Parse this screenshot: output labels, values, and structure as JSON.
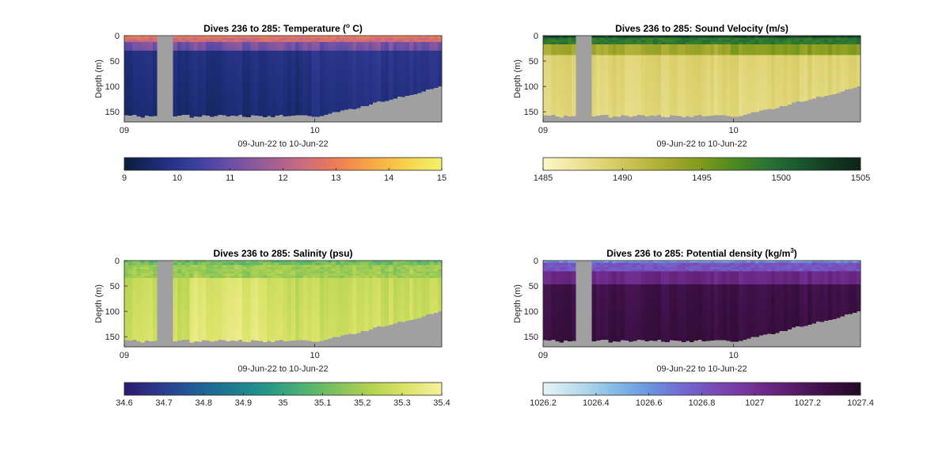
{
  "chart_data": [
    {
      "type": "heatmap",
      "title_prefix": "Dives 236 to 285: Temperature (",
      "title_sup": "o",
      "title_suffix": " C)",
      "variable": "Temperature",
      "ylabel": "Depth (m)",
      "xlabel": "09-Jun-22 to 10-Jun-22",
      "x_ticks": [
        "09",
        "10"
      ],
      "y_ticks": [
        0,
        50,
        100,
        150
      ],
      "ylim": [
        0,
        170
      ],
      "y_reversed": true,
      "profile": "temperature",
      "colormap": [
        "#0b1d3e",
        "#1e2d78",
        "#3a3fa0",
        "#6a4fa6",
        "#9a5c98",
        "#c96a7f",
        "#ee7c55",
        "#f7a743",
        "#f9d24c",
        "#f2f36b"
      ],
      "colorbar": {
        "min": 9,
        "max": 15,
        "ticks": [
          "9",
          "10",
          "11",
          "12",
          "13",
          "14",
          "15"
        ]
      }
    },
    {
      "type": "heatmap",
      "title_prefix": "Dives 236 to 285: Sound Velocity (m/s)",
      "title_sup": "",
      "title_suffix": "",
      "variable": "Sound Velocity",
      "ylabel": "Depth (m)",
      "xlabel": "09-Jun-22 to 10-Jun-22",
      "x_ticks": [
        "09",
        "10"
      ],
      "y_ticks": [
        0,
        50,
        100,
        150
      ],
      "ylim": [
        0,
        170
      ],
      "y_reversed": true,
      "profile": "sound",
      "colormap": [
        "#fbf8c6",
        "#efe59a",
        "#dcd16e",
        "#c4bd4b",
        "#a3a82d",
        "#7f9a1c",
        "#4e8a20",
        "#2a7434",
        "#1a5a30",
        "#123a22",
        "#0d2318"
      ],
      "colorbar": {
        "min": 1485,
        "max": 1505,
        "ticks": [
          "1485",
          "1490",
          "1495",
          "1500",
          "1505"
        ]
      }
    },
    {
      "type": "heatmap",
      "title_prefix": "Dives 236 to 285: Salinity (psu)",
      "title_sup": "",
      "title_suffix": "",
      "variable": "Salinity",
      "ylabel": "Depth (m)",
      "xlabel": "09-Jun-22 to 10-Jun-22",
      "x_ticks": [
        "09",
        "10"
      ],
      "y_ticks": [
        0,
        50,
        100,
        150
      ],
      "ylim": [
        0,
        170
      ],
      "y_reversed": true,
      "profile": "salinity",
      "colormap": [
        "#2a1a6e",
        "#2b3a8e",
        "#1f5d96",
        "#1c7a8f",
        "#25968a",
        "#4ab074",
        "#7ec25c",
        "#b3d250",
        "#dce46a",
        "#f7efa0"
      ],
      "colorbar": {
        "min": 34.6,
        "max": 35.4,
        "ticks": [
          "34.6",
          "34.7",
          "34.8",
          "34.9",
          "35",
          "35.1",
          "35.2",
          "35.3",
          "35.4"
        ]
      }
    },
    {
      "type": "heatmap",
      "title_prefix": "Dives 236 to 285: Potential density (kg/m",
      "title_sup": "3",
      "title_suffix": ")",
      "variable": "Potential density",
      "ylabel": "Depth (m)",
      "xlabel": "09-Jun-22 to 10-Jun-22",
      "x_ticks": [
        "09",
        "10"
      ],
      "y_ticks": [
        0,
        50,
        100,
        150
      ],
      "ylim": [
        0,
        170
      ],
      "y_reversed": true,
      "profile": "density",
      "colormap": [
        "#e7f4f4",
        "#b9dcec",
        "#86bde6",
        "#6a95df",
        "#7068cf",
        "#7a47b4",
        "#712f92",
        "#5c1d6e",
        "#3d1046",
        "#230a26"
      ],
      "colorbar": {
        "min": 1026.2,
        "max": 1027.4,
        "ticks": [
          "1026.2",
          "1026.4",
          "1026.6",
          "1026.8",
          "1027",
          "1027.2",
          "1027.4"
        ]
      }
    }
  ]
}
